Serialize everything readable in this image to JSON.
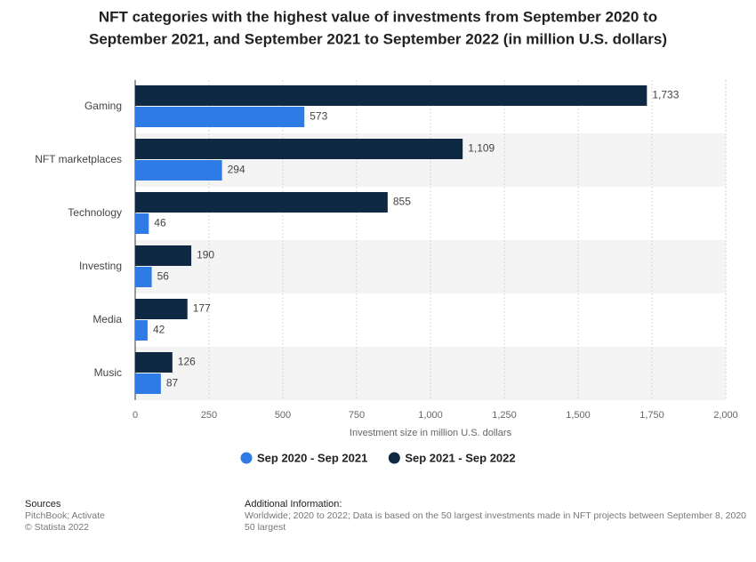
{
  "chart_data": {
    "type": "hbar",
    "title": [
      "NFT categories with the highest value of investments from September 2020 to",
      "September 2021, and September 2021 to September 2022 (in million U.S. dollars)"
    ],
    "categories": [
      "Gaming",
      "NFT marketplaces",
      "Technology",
      "Investing",
      "Media",
      "Music"
    ],
    "series": [
      {
        "name": "Sep 2020 - Sep 2021",
        "color": "#2f7be6",
        "values": [
          573,
          294,
          46,
          56,
          42,
          87
        ],
        "value_labels": [
          "573",
          "294",
          "46",
          "56",
          "42",
          "87"
        ]
      },
      {
        "name": "Sep 2021 - Sep 2022",
        "color": "#0f2942",
        "values": [
          1733,
          1109,
          855,
          190,
          177,
          126
        ],
        "value_labels": [
          "1,733",
          "1,109",
          "855",
          "190",
          "177",
          "126"
        ]
      }
    ],
    "xlabel": "Investment size in million U.S. dollars",
    "xlim": [
      0,
      2000
    ],
    "xticks": [
      0,
      250,
      500,
      750,
      {
        "value": 1000,
        "label": "1,000"
      },
      {
        "value": 1250,
        "label": "1,250"
      },
      {
        "value": 1500,
        "label": "1,500"
      },
      {
        "value": 1750,
        "label": "1,750"
      },
      {
        "value": 2000,
        "label": "2,000"
      }
    ],
    "grid": true,
    "legend": "bottom"
  },
  "footer": {
    "sources_title": "Sources",
    "sources": [
      "PitchBook; Activate",
      "© Statista 2022"
    ],
    "info_title": "Additional Information:",
    "info": [
      "Worldwide; 2020 to 2022; Data is based on the 50 largest investments made in NFT projects between September 8, 2020",
      "50 largest"
    ]
  }
}
